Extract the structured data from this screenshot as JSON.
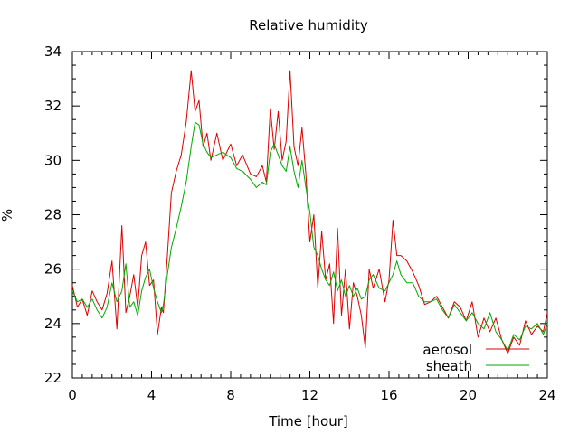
{
  "chart_data": {
    "type": "line",
    "title": "Relative humidity",
    "xlabel": "Time [hour]",
    "ylabel": "%",
    "xlim": [
      0,
      24
    ],
    "ylim": [
      22,
      34
    ],
    "xticks": [
      0,
      4,
      8,
      12,
      16,
      20,
      24
    ],
    "yticks": [
      22,
      24,
      26,
      28,
      30,
      32,
      34
    ],
    "grid": false,
    "legend_position": "bottom-right",
    "series": [
      {
        "name": "aerosol",
        "color": "#dd0000",
        "x": [
          0,
          0.25,
          0.5,
          0.75,
          1.0,
          1.25,
          1.5,
          1.75,
          2.0,
          2.25,
          2.5,
          2.7,
          2.9,
          3.1,
          3.3,
          3.5,
          3.7,
          3.9,
          4.1,
          4.3,
          4.5,
          4.6,
          4.8,
          5.0,
          5.25,
          5.5,
          5.75,
          6.0,
          6.2,
          6.4,
          6.6,
          6.8,
          7.0,
          7.3,
          7.6,
          8.0,
          8.3,
          8.6,
          9.0,
          9.3,
          9.6,
          9.8,
          10.0,
          10.2,
          10.4,
          10.6,
          10.8,
          11.0,
          11.2,
          11.4,
          11.6,
          11.8,
          12.0,
          12.2,
          12.4,
          12.6,
          12.8,
          13.0,
          13.2,
          13.4,
          13.6,
          13.8,
          14.0,
          14.2,
          14.4,
          14.6,
          14.8,
          15.0,
          15.2,
          15.5,
          15.8,
          16.0,
          16.2,
          16.4,
          16.6,
          16.9,
          17.2,
          17.5,
          17.8,
          18.1,
          18.4,
          18.7,
          19.0,
          19.3,
          19.6,
          19.9,
          20.2,
          20.5,
          20.8,
          21.1,
          21.4,
          21.7,
          22.0,
          22.3,
          22.6,
          22.9,
          23.2,
          23.5,
          23.8,
          24.0
        ],
        "values": [
          25.4,
          24.6,
          24.9,
          24.3,
          25.2,
          24.8,
          24.5,
          25.1,
          26.3,
          23.8,
          27.6,
          24.4,
          25.0,
          25.8,
          24.6,
          26.5,
          27.0,
          25.4,
          25.6,
          23.6,
          24.6,
          24.4,
          26.5,
          28.8,
          29.6,
          30.2,
          31.4,
          33.3,
          31.8,
          32.2,
          30.5,
          31.0,
          30.0,
          31.0,
          30.0,
          30.6,
          29.8,
          30.2,
          29.5,
          29.4,
          29.8,
          29.2,
          31.9,
          30.4,
          31.8,
          30.0,
          30.7,
          33.3,
          30.5,
          29.8,
          31.2,
          29.5,
          27.0,
          28.0,
          25.3,
          27.4,
          25.6,
          26.2,
          24.0,
          27.5,
          24.3,
          26.0,
          23.8,
          25.5,
          25.0,
          24.3,
          23.1,
          26.0,
          25.3,
          26.0,
          24.8,
          25.6,
          27.8,
          26.5,
          26.5,
          26.3,
          25.9,
          25.4,
          24.7,
          24.8,
          25.0,
          24.6,
          24.2,
          24.8,
          24.6,
          24.1,
          24.8,
          23.5,
          24.2,
          23.7,
          24.2,
          23.4,
          22.9,
          23.5,
          23.2,
          24.1,
          23.6,
          23.9,
          23.7,
          24.4
        ]
      },
      {
        "name": "sheath",
        "color": "#00aa00",
        "x": [
          0,
          0.25,
          0.5,
          0.75,
          1.0,
          1.25,
          1.5,
          1.75,
          2.0,
          2.25,
          2.5,
          2.7,
          2.9,
          3.1,
          3.3,
          3.5,
          3.7,
          3.9,
          4.1,
          4.3,
          4.5,
          4.6,
          4.8,
          5.0,
          5.25,
          5.5,
          5.75,
          6.0,
          6.2,
          6.4,
          6.6,
          6.8,
          7.0,
          7.3,
          7.6,
          8.0,
          8.3,
          8.6,
          9.0,
          9.3,
          9.6,
          9.8,
          10.0,
          10.2,
          10.4,
          10.6,
          10.8,
          11.0,
          11.2,
          11.4,
          11.6,
          11.8,
          12.0,
          12.2,
          12.4,
          12.6,
          12.8,
          13.0,
          13.2,
          13.4,
          13.6,
          13.8,
          14.0,
          14.2,
          14.4,
          14.6,
          14.8,
          15.0,
          15.2,
          15.5,
          15.8,
          16.0,
          16.2,
          16.4,
          16.6,
          16.9,
          17.2,
          17.5,
          17.8,
          18.1,
          18.4,
          18.7,
          19.0,
          19.3,
          19.6,
          19.9,
          20.2,
          20.5,
          20.8,
          21.1,
          21.4,
          21.7,
          22.0,
          22.3,
          22.6,
          22.9,
          23.2,
          23.5,
          23.8,
          24.0
        ],
        "values": [
          25.2,
          24.8,
          24.9,
          24.6,
          24.9,
          24.5,
          24.2,
          24.6,
          25.5,
          24.8,
          25.2,
          26.2,
          24.6,
          24.8,
          24.3,
          25.2,
          25.7,
          26.0,
          25.3,
          24.8,
          24.4,
          24.7,
          25.8,
          26.8,
          27.5,
          28.3,
          29.2,
          30.5,
          31.4,
          31.3,
          30.6,
          30.3,
          30.1,
          30.2,
          30.3,
          30.1,
          29.7,
          29.6,
          29.3,
          29.0,
          29.2,
          29.1,
          30.3,
          30.6,
          30.2,
          29.8,
          29.6,
          30.5,
          29.6,
          29.0,
          30.0,
          29.0,
          28.1,
          26.8,
          26.5,
          26.0,
          25.6,
          25.4,
          25.9,
          25.2,
          25.6,
          25.0,
          25.4,
          25.0,
          25.3,
          24.9,
          25.0,
          25.6,
          25.8,
          25.3,
          25.2,
          25.5,
          25.8,
          26.3,
          25.8,
          25.5,
          25.5,
          25.0,
          24.8,
          24.8,
          24.9,
          24.5,
          24.2,
          24.7,
          24.4,
          24.1,
          24.4,
          24.0,
          23.8,
          24.4,
          23.7,
          23.4,
          23.0,
          23.6,
          23.4,
          23.9,
          23.8,
          24.0,
          23.6,
          24.0
        ]
      }
    ]
  }
}
